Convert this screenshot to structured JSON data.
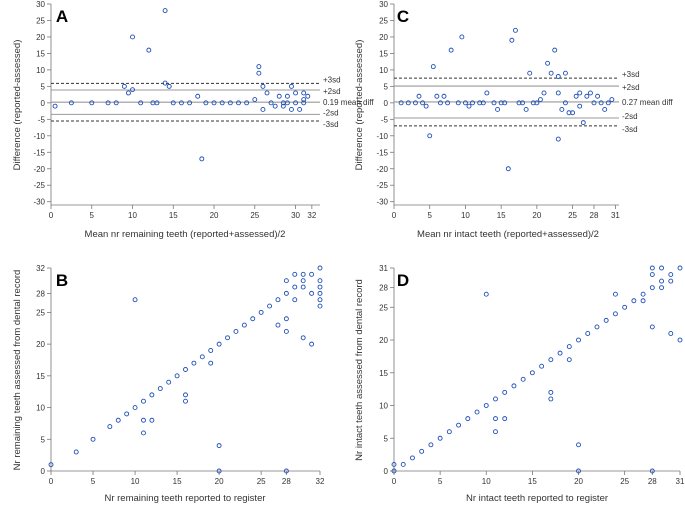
{
  "chart_data": [
    {
      "id": "A",
      "type": "scatter",
      "panel_label": "A",
      "xlabel": "Mean nr remaining teeth (reported+assessed)/2",
      "ylabel": "Difference (reported-assessed)",
      "xlim": [
        0,
        33
      ],
      "ylim": [
        -31,
        30
      ],
      "xticks": [
        0,
        5,
        10,
        15,
        20,
        25,
        30
      ],
      "xtick_labels": [
        "0",
        "5",
        "10",
        "15",
        "20",
        "25",
        "30"
      ],
      "xticks_extra": [
        32
      ],
      "xtick_extra_labels": [
        "32"
      ],
      "yticks": [
        -30,
        -25,
        -20,
        -15,
        -10,
        -5,
        0,
        5,
        10,
        15,
        20,
        25,
        30
      ],
      "ytick_labels": [
        "-30",
        "-25",
        "-20",
        "-15",
        "-10",
        "-5",
        "0",
        "5",
        "10",
        "15",
        "20",
        "25",
        "30"
      ],
      "reference_lines": [
        {
          "label": "+3sd",
          "value": 5.9,
          "style": "dashed"
        },
        {
          "label": "+2sd",
          "value": 3.9,
          "style": "solid"
        },
        {
          "label": "0.19 mean diff",
          "value": 0.19,
          "style": "solid"
        },
        {
          "label": "-2sd",
          "value": -3.5,
          "style": "solid"
        },
        {
          "label": "-3sd",
          "value": -5.5,
          "style": "dashed"
        }
      ],
      "points": [
        [
          0.5,
          -1
        ],
        [
          2.5,
          0
        ],
        [
          5,
          0
        ],
        [
          7,
          0
        ],
        [
          8,
          0
        ],
        [
          9,
          5
        ],
        [
          9.5,
          3
        ],
        [
          10,
          4
        ],
        [
          10,
          20
        ],
        [
          11,
          0
        ],
        [
          12,
          16
        ],
        [
          12.5,
          0
        ],
        [
          13,
          0
        ],
        [
          14,
          28
        ],
        [
          14,
          6
        ],
        [
          14.5,
          5
        ],
        [
          15,
          0
        ],
        [
          16,
          0
        ],
        [
          17,
          0
        ],
        [
          18,
          2
        ],
        [
          18.5,
          -17
        ],
        [
          19,
          0
        ],
        [
          20,
          0
        ],
        [
          21,
          0
        ],
        [
          22,
          0
        ],
        [
          23,
          0
        ],
        [
          24,
          0
        ],
        [
          25,
          1
        ],
        [
          25.5,
          11
        ],
        [
          25.5,
          9
        ],
        [
          26,
          5
        ],
        [
          26,
          -2
        ],
        [
          26.5,
          3
        ],
        [
          27,
          0
        ],
        [
          27.5,
          -1
        ],
        [
          28,
          2
        ],
        [
          28.5,
          0
        ],
        [
          28.5,
          -1
        ],
        [
          29,
          2
        ],
        [
          29,
          0
        ],
        [
          29.5,
          5
        ],
        [
          29.5,
          -2
        ],
        [
          30,
          3
        ],
        [
          30,
          0
        ],
        [
          30.5,
          -2
        ],
        [
          31,
          3
        ],
        [
          31,
          0
        ],
        [
          31,
          1
        ],
        [
          31.5,
          2
        ]
      ]
    },
    {
      "id": "B",
      "type": "scatter",
      "panel_label": "B",
      "xlabel": "Nr remaining teeth reported to register",
      "ylabel": "Nr remaining teeth assessed from dental record",
      "xlim": [
        0,
        32
      ],
      "ylim": [
        0,
        32
      ],
      "xticks": [
        0,
        5,
        10,
        15,
        20,
        25,
        28,
        32
      ],
      "xtick_labels": [
        "0",
        "5",
        "10",
        "15",
        "20",
        "25",
        "28",
        "32"
      ],
      "yticks": [
        0,
        5,
        10,
        15,
        20,
        25,
        28,
        32
      ],
      "ytick_labels": [
        "0",
        "5",
        "10",
        "15",
        "20",
        "25",
        "28",
        "32"
      ],
      "points": [
        [
          0,
          1
        ],
        [
          3,
          3
        ],
        [
          5,
          5
        ],
        [
          7,
          7
        ],
        [
          8,
          8
        ],
        [
          9,
          9
        ],
        [
          10,
          10
        ],
        [
          10,
          27
        ],
        [
          11,
          11
        ],
        [
          11,
          6
        ],
        [
          11,
          8
        ],
        [
          12,
          12
        ],
        [
          12,
          8
        ],
        [
          13,
          13
        ],
        [
          14,
          14
        ],
        [
          15,
          15
        ],
        [
          16,
          16
        ],
        [
          16,
          11
        ],
        [
          16,
          12
        ],
        [
          17,
          17
        ],
        [
          18,
          18
        ],
        [
          19,
          19
        ],
        [
          19,
          17
        ],
        [
          20,
          20
        ],
        [
          20,
          4
        ],
        [
          20,
          0
        ],
        [
          21,
          21
        ],
        [
          22,
          22
        ],
        [
          23,
          23
        ],
        [
          24,
          24
        ],
        [
          25,
          25
        ],
        [
          26,
          26
        ],
        [
          27,
          27
        ],
        [
          27,
          23
        ],
        [
          28,
          28
        ],
        [
          28,
          22
        ],
        [
          28,
          0
        ],
        [
          28,
          30
        ],
        [
          29,
          29
        ],
        [
          29,
          27
        ],
        [
          30,
          30
        ],
        [
          30,
          21
        ],
        [
          30,
          31
        ],
        [
          31,
          31
        ],
        [
          31,
          20
        ],
        [
          32,
          32
        ],
        [
          32,
          30
        ],
        [
          32,
          29
        ],
        [
          32,
          28
        ],
        [
          32,
          27
        ],
        [
          32,
          26
        ],
        [
          31,
          28
        ],
        [
          30,
          29
        ],
        [
          29,
          31
        ],
        [
          28,
          24
        ]
      ]
    },
    {
      "id": "C",
      "type": "scatter",
      "panel_label": "C",
      "xlabel": "Mean nr intact teeth (reported+assessed)/2",
      "ylabel": "Difference (reported-assessed)",
      "xlim": [
        0,
        31.5
      ],
      "ylim": [
        -31,
        30
      ],
      "xticks": [
        0,
        5,
        10,
        15,
        20,
        25
      ],
      "xtick_labels": [
        "0",
        "5",
        "10",
        "15",
        "20",
        "25"
      ],
      "xticks_extra": [
        28,
        31
      ],
      "xtick_extra_labels": [
        "28",
        "31"
      ],
      "yticks": [
        -30,
        -25,
        -20,
        -15,
        -10,
        -5,
        0,
        5,
        10,
        15,
        20,
        25,
        30
      ],
      "ytick_labels": [
        "-30",
        "-25",
        "-20",
        "-15",
        "-10",
        "-5",
        "0",
        "5",
        "10",
        "15",
        "20",
        "25",
        "30"
      ],
      "reference_lines": [
        {
          "label": "+3sd",
          "value": 7.5,
          "style": "dashed"
        },
        {
          "label": "+2sd",
          "value": 5.1,
          "style": "solid"
        },
        {
          "label": "0.27 mean diff",
          "value": 0.27,
          "style": "solid"
        },
        {
          "label": "-2sd",
          "value": -4.6,
          "style": "solid"
        },
        {
          "label": "-3sd",
          "value": -7.0,
          "style": "dashed"
        }
      ],
      "points": [
        [
          1,
          0
        ],
        [
          2,
          0
        ],
        [
          3,
          0
        ],
        [
          3.5,
          2
        ],
        [
          4,
          0
        ],
        [
          4.5,
          -1
        ],
        [
          5,
          -10
        ],
        [
          5.5,
          11
        ],
        [
          6,
          2
        ],
        [
          6.5,
          0
        ],
        [
          7,
          2
        ],
        [
          7.5,
          0
        ],
        [
          8,
          16
        ],
        [
          9,
          0
        ],
        [
          9.5,
          20
        ],
        [
          10,
          0
        ],
        [
          10.5,
          -1
        ],
        [
          11,
          0
        ],
        [
          12,
          0
        ],
        [
          12.5,
          0
        ],
        [
          13,
          3
        ],
        [
          14,
          0
        ],
        [
          14.5,
          -2
        ],
        [
          15,
          0
        ],
        [
          15.5,
          0
        ],
        [
          16,
          -20
        ],
        [
          16.5,
          19
        ],
        [
          17,
          22
        ],
        [
          17.5,
          0
        ],
        [
          18,
          0
        ],
        [
          18.5,
          -2
        ],
        [
          19,
          9
        ],
        [
          19.5,
          0
        ],
        [
          20,
          0
        ],
        [
          20.5,
          1
        ],
        [
          21,
          3
        ],
        [
          21.5,
          12
        ],
        [
          22,
          9
        ],
        [
          22.5,
          16
        ],
        [
          23,
          8
        ],
        [
          23,
          3
        ],
        [
          23,
          -11
        ],
        [
          23.5,
          -2
        ],
        [
          24,
          9
        ],
        [
          24,
          0
        ],
        [
          24.5,
          -3
        ],
        [
          25,
          -3
        ],
        [
          25.5,
          2
        ],
        [
          26,
          3
        ],
        [
          26,
          -1
        ],
        [
          26.5,
          -6
        ],
        [
          27,
          2
        ],
        [
          27.5,
          3
        ],
        [
          28,
          0
        ],
        [
          28.5,
          2
        ],
        [
          29,
          0
        ],
        [
          29.5,
          -2
        ],
        [
          30,
          0
        ],
        [
          30.5,
          1
        ]
      ]
    },
    {
      "id": "D",
      "type": "scatter",
      "panel_label": "D",
      "xlabel": "Nr intact teeth reported to register",
      "ylabel": "Nr intact teeth assessed from dental record",
      "xlim": [
        0,
        31
      ],
      "ylim": [
        0,
        31
      ],
      "xticks": [
        0,
        5,
        10,
        15,
        20,
        25,
        28,
        31
      ],
      "xtick_labels": [
        "0",
        "5",
        "10",
        "15",
        "20",
        "25",
        "28",
        "31"
      ],
      "yticks": [
        0,
        5,
        10,
        15,
        20,
        25,
        28,
        31
      ],
      "ytick_labels": [
        "0",
        "5",
        "10",
        "15",
        "20",
        "25",
        "28",
        "31"
      ],
      "points": [
        [
          0,
          0
        ],
        [
          0,
          1
        ],
        [
          1,
          1
        ],
        [
          2,
          2
        ],
        [
          3,
          3
        ],
        [
          4,
          4
        ],
        [
          5,
          5
        ],
        [
          6,
          6
        ],
        [
          7,
          7
        ],
        [
          8,
          8
        ],
        [
          9,
          9
        ],
        [
          10,
          10
        ],
        [
          10,
          27
        ],
        [
          11,
          11
        ],
        [
          11,
          6
        ],
        [
          11,
          8
        ],
        [
          12,
          12
        ],
        [
          12,
          8
        ],
        [
          13,
          13
        ],
        [
          14,
          14
        ],
        [
          15,
          15
        ],
        [
          16,
          16
        ],
        [
          17,
          17
        ],
        [
          17,
          11
        ],
        [
          17,
          12
        ],
        [
          18,
          18
        ],
        [
          19,
          19
        ],
        [
          19,
          17
        ],
        [
          20,
          20
        ],
        [
          20,
          4
        ],
        [
          20,
          0
        ],
        [
          21,
          21
        ],
        [
          22,
          22
        ],
        [
          23,
          23
        ],
        [
          24,
          24
        ],
        [
          24,
          27
        ],
        [
          25,
          25
        ],
        [
          26,
          26
        ],
        [
          27,
          27
        ],
        [
          28,
          28
        ],
        [
          28,
          22
        ],
        [
          28,
          0
        ],
        [
          28,
          31
        ],
        [
          28,
          30
        ],
        [
          29,
          29
        ],
        [
          29,
          28
        ],
        [
          30,
          30
        ],
        [
          30,
          21
        ],
        [
          31,
          31
        ],
        [
          31,
          20
        ],
        [
          29,
          31
        ],
        [
          30,
          29
        ],
        [
          27,
          26
        ]
      ]
    }
  ]
}
